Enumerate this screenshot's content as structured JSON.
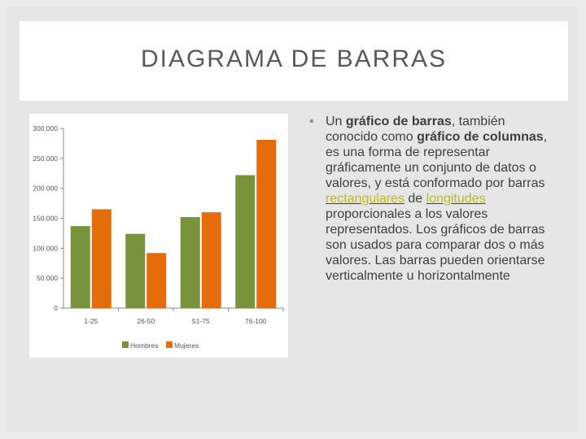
{
  "slide": {
    "title": "DIAGRAMA DE BARRAS"
  },
  "body": {
    "t1": "Un ",
    "b1": "gráfico de barras",
    "t2": ", también conocido como ",
    "b2": "gráfico de columnas",
    "t3": ", es una forma de representar gráficamente un conjunto de datos o valores, y está conformado por barras ",
    "link1": "rectangulares",
    "t4": " de ",
    "link2": "longitudes",
    "t5": " proporcionales a los valores representados. Los gráficos de barras son usados para comparar dos o más valores. Las barras pueden orientarse verticalmente u horizontalmente"
  },
  "chart_data": {
    "type": "bar",
    "categories": [
      "1-25",
      "26-50",
      "51-75",
      "76-100"
    ],
    "series": [
      {
        "name": "Hombres",
        "values": [
          137000,
          124000,
          152000,
          222000
        ],
        "color": "#77933c"
      },
      {
        "name": "Mujeres",
        "values": [
          165000,
          92000,
          160000,
          281000
        ],
        "color": "#e46c0a"
      }
    ],
    "yticks": [
      "0",
      "50.000",
      "100.000",
      "150.000",
      "200.000",
      "250.000",
      "300.000"
    ],
    "ylim": [
      0,
      300000
    ],
    "title": "",
    "xlabel": "",
    "ylabel": "",
    "grid": false,
    "legend": "bottom"
  }
}
